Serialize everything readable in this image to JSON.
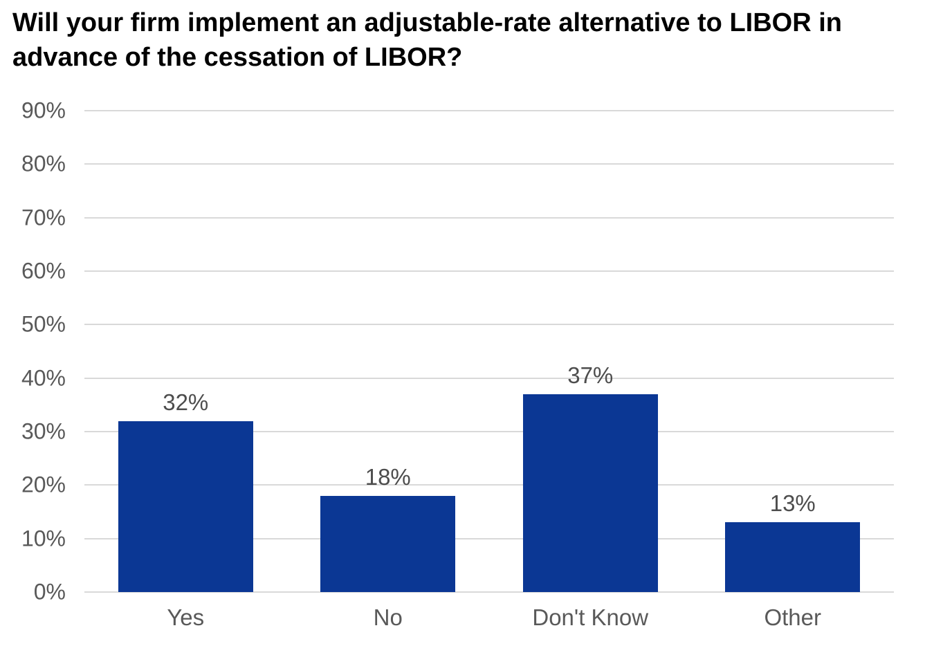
{
  "title": {
    "lines": [
      "Will your firm implement an adjustable-rate alternative to LIBOR in",
      "advance of the cessation of LIBOR?"
    ]
  },
  "chart_data": {
    "type": "bar",
    "title": "Will your firm implement an adjustable-rate alternative to LIBOR in advance of the cessation of LIBOR?",
    "categories": [
      "Yes",
      "No",
      "Don't Know",
      "Other"
    ],
    "values": [
      32,
      18,
      37,
      13
    ],
    "value_labels": [
      "32%",
      "18%",
      "37%",
      "13%"
    ],
    "ytick_labels": [
      "0%",
      "10%",
      "20%",
      "30%",
      "40%",
      "50%",
      "60%",
      "70%",
      "80%",
      "90%"
    ],
    "ylim": [
      0,
      90
    ],
    "ytick_step": 10,
    "xlabel": "",
    "ylabel": "",
    "grid": "horizontal",
    "legend": "none",
    "colors": {
      "bar": "#0b3794",
      "grid": "#d9d9d9",
      "axis_label": "#595959",
      "value_label": "#4d4d4d",
      "title": "#000000",
      "background": "#ffffff"
    }
  }
}
